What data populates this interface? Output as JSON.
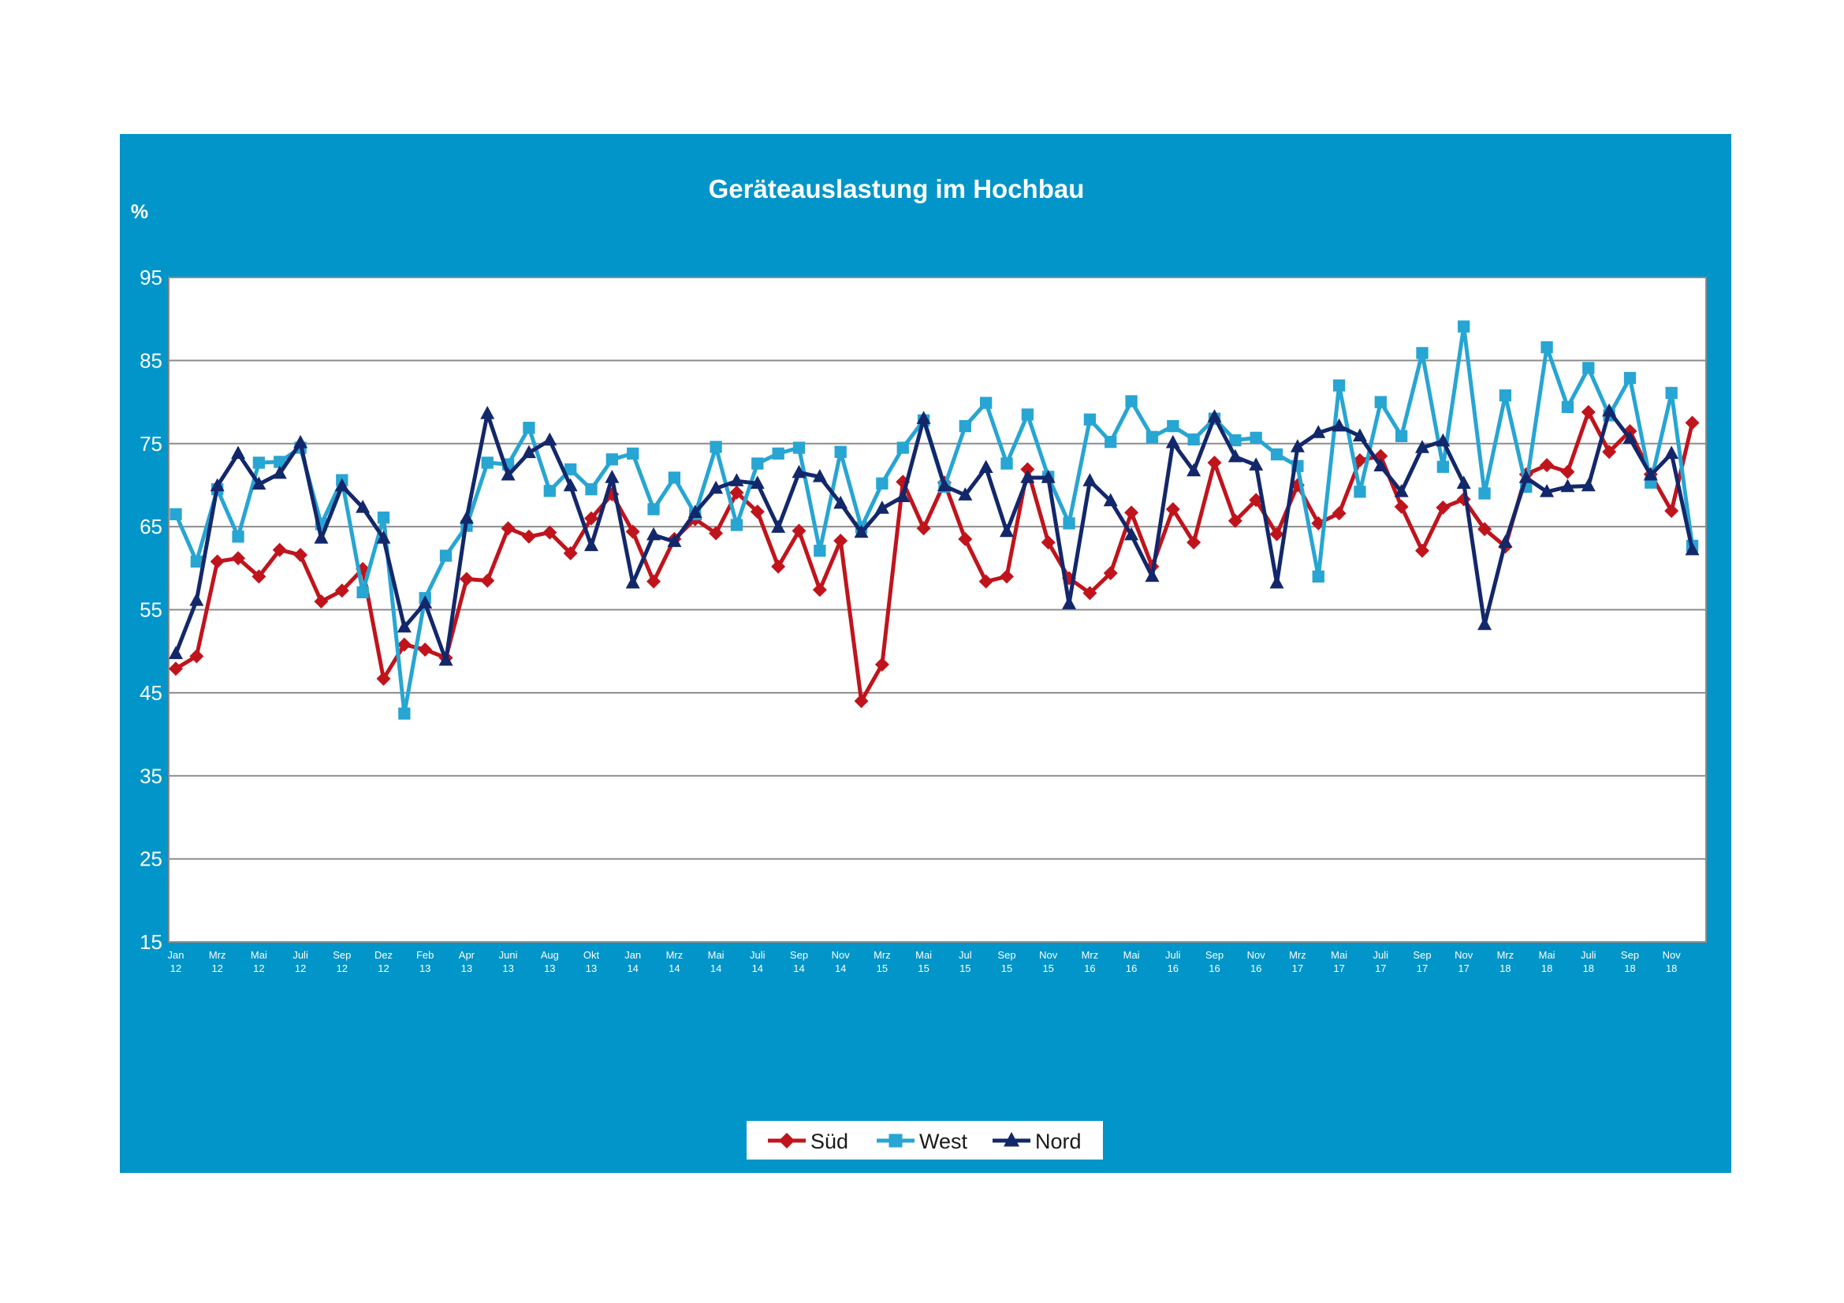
{
  "chart_data": {
    "type": "line",
    "title": "Geräteauslastung im Hochbau",
    "ylabel": "%",
    "xlabel": "",
    "ylim": [
      15,
      95
    ],
    "yticks": [
      95,
      85,
      75,
      65,
      55,
      45,
      35,
      25,
      15
    ],
    "grid": true,
    "legend_position": "bottom-center",
    "x_tick_labels": [
      [
        "Jan",
        "12"
      ],
      [
        "Mrz",
        "12"
      ],
      [
        "Mai",
        "12"
      ],
      [
        "Juli",
        "12"
      ],
      [
        "Sep",
        "12"
      ],
      [
        "Dez",
        "12"
      ],
      [
        "Feb",
        "13"
      ],
      [
        "Apr",
        "13"
      ],
      [
        "Juni",
        "13"
      ],
      [
        "Aug",
        "13"
      ],
      [
        "Okt",
        "13"
      ],
      [
        "Jan",
        "14"
      ],
      [
        "Mrz",
        "14"
      ],
      [
        "Mai",
        "14"
      ],
      [
        "Juli",
        "14"
      ],
      [
        "Sep",
        "14"
      ],
      [
        "Nov",
        "14"
      ],
      [
        "Mrz",
        "15"
      ],
      [
        "Mai",
        "15"
      ],
      [
        "Jul",
        "15"
      ],
      [
        "Sep",
        "15"
      ],
      [
        "Nov",
        "15"
      ],
      [
        "Mrz",
        "16"
      ],
      [
        "Mai",
        "16"
      ],
      [
        "Juli",
        "16"
      ],
      [
        "Sep",
        "16"
      ],
      [
        "Nov",
        "16"
      ],
      [
        "Mrz",
        "17"
      ],
      [
        "Mai",
        "17"
      ],
      [
        "Juli",
        "17"
      ],
      [
        "Sep",
        "17"
      ],
      [
        "Nov",
        "17"
      ],
      [
        "Mrz",
        "18"
      ],
      [
        "Mai",
        "18"
      ],
      [
        "Juli",
        "18"
      ],
      [
        "Sep",
        "18"
      ],
      [
        "Nov",
        "18"
      ]
    ],
    "series": [
      {
        "name": "Süd",
        "color": "#c0141c",
        "marker": "diamond",
        "values": [
          47.9,
          49.4,
          60.8,
          61.2,
          59.0,
          62.2,
          61.6,
          56.0,
          57.3,
          59.9,
          46.7,
          50.8,
          50.2,
          49.2,
          58.7,
          58.5,
          64.8,
          63.8,
          64.3,
          61.8,
          66.0,
          68.9,
          64.4,
          58.4,
          63.5,
          65.9,
          64.2,
          69.1,
          66.8,
          60.2,
          64.5,
          57.4,
          63.3,
          44.0,
          48.4,
          70.4,
          64.8,
          70.3,
          63.5,
          58.4,
          59.0,
          71.9,
          63.1,
          58.8,
          57.0,
          59.4,
          66.7,
          60.2,
          67.1,
          63.1,
          72.7,
          65.7,
          68.2,
          64.1,
          70.0,
          65.4,
          66.6,
          73.0,
          73.5,
          67.4,
          62.1,
          67.3,
          68.3,
          64.7,
          62.6,
          71.3,
          72.4,
          71.6,
          78.8,
          74.0,
          76.5,
          71.3,
          66.9,
          77.5
        ]
      },
      {
        "name": "West",
        "color": "#27a5d3",
        "marker": "square",
        "values": [
          66.5,
          60.8,
          69.5,
          63.8,
          72.7,
          72.8,
          74.5,
          65.3,
          70.6,
          57.1,
          66.1,
          42.5,
          56.4,
          61.5,
          65.1,
          72.7,
          72.5,
          76.9,
          69.3,
          71.9,
          69.5,
          73.1,
          73.8,
          67.1,
          70.9,
          66.5,
          74.6,
          65.2,
          72.6,
          73.8,
          74.5,
          62.1,
          74.0,
          64.9,
          70.2,
          74.5,
          77.8,
          69.8,
          77.1,
          79.9,
          72.6,
          78.5,
          71.0,
          65.4,
          77.9,
          75.2,
          80.1,
          75.8,
          77.1,
          75.5,
          78.0,
          75.4,
          75.7,
          73.7,
          72.3,
          59.0,
          82.0,
          69.2,
          80.0,
          75.9,
          85.9,
          72.2,
          89.1,
          69.0,
          80.8,
          69.8,
          86.6,
          79.4,
          84.1,
          78.4,
          82.9,
          70.3,
          81.1,
          62.7
        ]
      },
      {
        "name": "Nord",
        "color": "#13276b",
        "marker": "triangle",
        "values": [
          49.7,
          56.1,
          69.9,
          73.8,
          70.1,
          71.4,
          75.1,
          63.6,
          69.9,
          67.3,
          63.6,
          52.9,
          55.8,
          48.9,
          66.0,
          78.6,
          71.2,
          73.9,
          75.4,
          69.9,
          62.7,
          70.9,
          58.2,
          64.0,
          63.2,
          66.7,
          69.6,
          70.5,
          70.2,
          64.9,
          71.5,
          71.0,
          67.8,
          64.3,
          67.2,
          68.6,
          78.0,
          69.9,
          68.8,
          72.1,
          64.4,
          70.9,
          70.9,
          55.7,
          70.5,
          68.1,
          64.0,
          59.0,
          75.1,
          71.7,
          78.2,
          73.4,
          72.4,
          58.2,
          74.6,
          76.3,
          77.1,
          75.9,
          72.3,
          69.2,
          74.5,
          75.3,
          70.2,
          53.2,
          63.1,
          70.9,
          69.2,
          69.8,
          69.9,
          78.9,
          75.6,
          71.2,
          73.8,
          62.2
        ]
      }
    ]
  }
}
